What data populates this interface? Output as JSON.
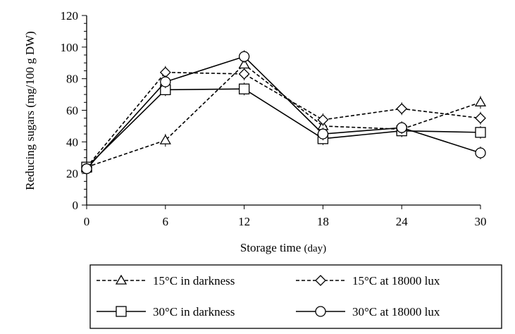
{
  "chart_data": {
    "type": "line",
    "title": "",
    "xlabel": "Storage time",
    "xlabel_unit": "(day)",
    "ylabel": "Reducing sugars (mg/100 g DW)",
    "x": [
      0,
      6,
      12,
      18,
      24,
      30
    ],
    "xlim": [
      0,
      30
    ],
    "ylim": [
      0,
      120
    ],
    "xticks": [
      "0",
      "6",
      "12",
      "18",
      "24",
      "30"
    ],
    "yticks": [
      "0",
      "20",
      "40",
      "60",
      "80",
      "100",
      "120"
    ],
    "grid": false,
    "legend_position": "bottom",
    "series": [
      {
        "name": "15°C in darkness",
        "marker": "triangle",
        "dash": true,
        "values": [
          24,
          41,
          89,
          50,
          48,
          65
        ]
      },
      {
        "name": "15°C at 18000 lux",
        "marker": "diamond",
        "dash": true,
        "values": [
          24,
          84,
          83,
          54,
          61,
          55
        ]
      },
      {
        "name": "30°C in darkness",
        "marker": "square",
        "dash": false,
        "values": [
          24,
          73,
          73.5,
          42,
          47,
          46
        ]
      },
      {
        "name": "30°C at 18000 lux",
        "marker": "circle",
        "dash": false,
        "values": [
          23,
          78,
          94,
          45,
          49,
          33
        ]
      }
    ]
  }
}
